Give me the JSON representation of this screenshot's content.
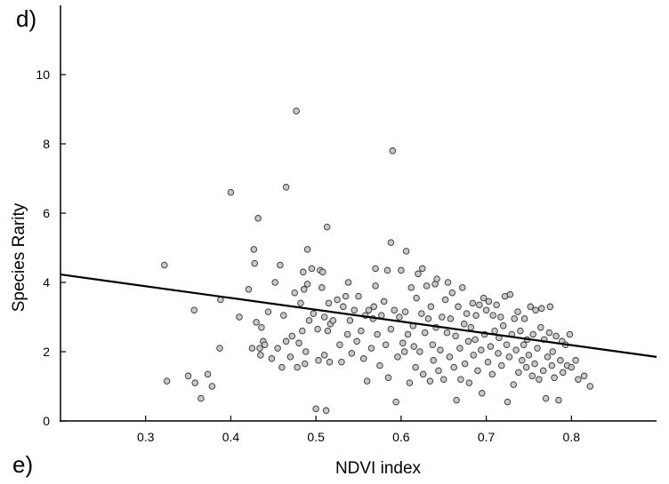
{
  "panel_labels": {
    "top": "d)",
    "bottom": "e)"
  },
  "chart_data": {
    "type": "scatter",
    "xlabel": "NDVI index",
    "ylabel": "Species Rarity",
    "xlim": [
      0.2,
      0.9
    ],
    "ylim": [
      0,
      12
    ],
    "xticks": [
      "0.3",
      "0.4",
      "0.5",
      "0.6",
      "0.7",
      "0.8"
    ],
    "yticks": [
      "0",
      "2",
      "4",
      "6",
      "8",
      "10"
    ],
    "grid": false,
    "trendline": {
      "x": [
        0.2,
        0.9
      ],
      "y": [
        4.23,
        1.85
      ]
    },
    "points": [
      [
        0.322,
        4.5
      ],
      [
        0.325,
        1.15
      ],
      [
        0.35,
        1.3
      ],
      [
        0.357,
        3.2
      ],
      [
        0.358,
        1.1
      ],
      [
        0.365,
        0.65
      ],
      [
        0.373,
        1.35
      ],
      [
        0.378,
        1.0
      ],
      [
        0.387,
        2.1
      ],
      [
        0.388,
        3.5
      ],
      [
        0.4,
        6.6
      ],
      [
        0.41,
        3.0
      ],
      [
        0.421,
        3.8
      ],
      [
        0.425,
        2.1
      ],
      [
        0.427,
        4.95
      ],
      [
        0.428,
        4.55
      ],
      [
        0.43,
        2.85
      ],
      [
        0.432,
        5.85
      ],
      [
        0.434,
        2.1
      ],
      [
        0.435,
        1.9
      ],
      [
        0.436,
        2.7
      ],
      [
        0.438,
        2.3
      ],
      [
        0.44,
        2.2
      ],
      [
        0.444,
        3.15
      ],
      [
        0.448,
        1.8
      ],
      [
        0.452,
        4.0
      ],
      [
        0.455,
        2.1
      ],
      [
        0.458,
        4.5
      ],
      [
        0.46,
        1.55
      ],
      [
        0.462,
        3.05
      ],
      [
        0.465,
        6.75
      ],
      [
        0.465,
        2.3
      ],
      [
        0.47,
        1.85
      ],
      [
        0.472,
        2.45
      ],
      [
        0.475,
        3.7
      ],
      [
        0.477,
        8.95
      ],
      [
        0.478,
        1.55
      ],
      [
        0.48,
        2.25
      ],
      [
        0.482,
        3.4
      ],
      [
        0.484,
        2.6
      ],
      [
        0.485,
        4.3
      ],
      [
        0.486,
        3.8
      ],
      [
        0.487,
        1.65
      ],
      [
        0.488,
        2.0
      ],
      [
        0.49,
        3.95
      ],
      [
        0.49,
        4.95
      ],
      [
        0.492,
        2.9
      ],
      [
        0.495,
        4.4
      ],
      [
        0.497,
        3.1
      ],
      [
        0.5,
        0.35
      ],
      [
        0.502,
        2.65
      ],
      [
        0.503,
        1.75
      ],
      [
        0.505,
        4.35
      ],
      [
        0.507,
        3.85
      ],
      [
        0.508,
        4.3
      ],
      [
        0.51,
        1.9
      ],
      [
        0.51,
        3.0
      ],
      [
        0.512,
        0.3
      ],
      [
        0.513,
        5.6
      ],
      [
        0.514,
        2.6
      ],
      [
        0.515,
        3.4
      ],
      [
        0.516,
        1.7
      ],
      [
        0.517,
        2.8
      ],
      [
        0.52,
        2.9
      ],
      [
        0.525,
        3.5
      ],
      [
        0.528,
        2.2
      ],
      [
        0.53,
        1.7
      ],
      [
        0.532,
        3.3
      ],
      [
        0.535,
        3.6
      ],
      [
        0.537,
        2.5
      ],
      [
        0.538,
        4.0
      ],
      [
        0.54,
        2.9
      ],
      [
        0.542,
        1.95
      ],
      [
        0.545,
        3.2
      ],
      [
        0.548,
        2.3
      ],
      [
        0.55,
        3.6
      ],
      [
        0.553,
        2.6
      ],
      [
        0.556,
        1.8
      ],
      [
        0.558,
        3.05
      ],
      [
        0.56,
        1.15
      ],
      [
        0.562,
        3.2
      ],
      [
        0.565,
        2.1
      ],
      [
        0.567,
        2.95
      ],
      [
        0.568,
        3.3
      ],
      [
        0.57,
        3.9
      ],
      [
        0.57,
        4.4
      ],
      [
        0.572,
        2.5
      ],
      [
        0.575,
        1.6
      ],
      [
        0.577,
        3.05
      ],
      [
        0.58,
        3.45
      ],
      [
        0.582,
        2.2
      ],
      [
        0.584,
        4.35
      ],
      [
        0.585,
        1.25
      ],
      [
        0.588,
        2.65
      ],
      [
        0.588,
        5.15
      ],
      [
        0.59,
        7.8
      ],
      [
        0.592,
        3.2
      ],
      [
        0.594,
        0.55
      ],
      [
        0.596,
        1.85
      ],
      [
        0.598,
        3.0
      ],
      [
        0.6,
        4.35
      ],
      [
        0.602,
        2.25
      ],
      [
        0.604,
        2.0
      ],
      [
        0.605,
        3.15
      ],
      [
        0.606,
        4.9
      ],
      [
        0.608,
        2.5
      ],
      [
        0.61,
        1.1
      ],
      [
        0.612,
        3.85
      ],
      [
        0.614,
        2.75
      ],
      [
        0.615,
        2.15
      ],
      [
        0.617,
        1.55
      ],
      [
        0.618,
        3.55
      ],
      [
        0.62,
        4.25
      ],
      [
        0.622,
        2.0
      ],
      [
        0.624,
        3.1
      ],
      [
        0.625,
        4.4
      ],
      [
        0.626,
        1.35
      ],
      [
        0.628,
        2.55
      ],
      [
        0.63,
        3.9
      ],
      [
        0.632,
        2.95
      ],
      [
        0.634,
        1.15
      ],
      [
        0.635,
        3.3
      ],
      [
        0.637,
        2.2
      ],
      [
        0.638,
        1.75
      ],
      [
        0.64,
        3.95
      ],
      [
        0.641,
        2.7
      ],
      [
        0.642,
        4.1
      ],
      [
        0.644,
        1.45
      ],
      [
        0.646,
        2.05
      ],
      [
        0.648,
        3.0
      ],
      [
        0.65,
        1.2
      ],
      [
        0.652,
        3.5
      ],
      [
        0.654,
        2.55
      ],
      [
        0.655,
        4.0
      ],
      [
        0.657,
        1.85
      ],
      [
        0.658,
        2.95
      ],
      [
        0.66,
        3.7
      ],
      [
        0.662,
        1.55
      ],
      [
        0.664,
        2.45
      ],
      [
        0.665,
        0.6
      ],
      [
        0.667,
        3.3
      ],
      [
        0.669,
        2.1
      ],
      [
        0.67,
        1.2
      ],
      [
        0.672,
        3.85
      ],
      [
        0.674,
        2.8
      ],
      [
        0.675,
        1.65
      ],
      [
        0.677,
        3.1
      ],
      [
        0.679,
        2.3
      ],
      [
        0.68,
        1.1
      ],
      [
        0.682,
        2.7
      ],
      [
        0.684,
        3.4
      ],
      [
        0.685,
        1.9
      ],
      [
        0.687,
        2.35
      ],
      [
        0.688,
        3.05
      ],
      [
        0.69,
        1.45
      ],
      [
        0.692,
        3.35
      ],
      [
        0.694,
        2.05
      ],
      [
        0.695,
        0.8
      ],
      [
        0.697,
        3.55
      ],
      [
        0.698,
        2.5
      ],
      [
        0.7,
        3.2
      ],
      [
        0.702,
        1.7
      ],
      [
        0.703,
        3.45
      ],
      [
        0.705,
        2.15
      ],
      [
        0.707,
        1.35
      ],
      [
        0.708,
        3.05
      ],
      [
        0.71,
        2.6
      ],
      [
        0.712,
        3.35
      ],
      [
        0.714,
        1.95
      ],
      [
        0.715,
        2.4
      ],
      [
        0.717,
        3.0
      ],
      [
        0.718,
        1.6
      ],
      [
        0.72,
        2.75
      ],
      [
        0.722,
        3.6
      ],
      [
        0.724,
        2.2
      ],
      [
        0.725,
        0.55
      ],
      [
        0.727,
        1.85
      ],
      [
        0.728,
        3.65
      ],
      [
        0.73,
        2.5
      ],
      [
        0.732,
        1.05
      ],
      [
        0.733,
        2.95
      ],
      [
        0.735,
        2.05
      ],
      [
        0.737,
        3.15
      ],
      [
        0.738,
        1.4
      ],
      [
        0.74,
        2.6
      ],
      [
        0.742,
        1.75
      ],
      [
        0.744,
        2.2
      ],
      [
        0.745,
        2.95
      ],
      [
        0.747,
        1.55
      ],
      [
        0.748,
        2.35
      ],
      [
        0.75,
        1.9
      ],
      [
        0.752,
        3.3
      ],
      [
        0.754,
        1.3
      ],
      [
        0.755,
        2.5
      ],
      [
        0.757,
        1.65
      ],
      [
        0.758,
        3.2
      ],
      [
        0.76,
        2.1
      ],
      [
        0.762,
        1.2
      ],
      [
        0.764,
        2.7
      ],
      [
        0.765,
        3.25
      ],
      [
        0.767,
        1.45
      ],
      [
        0.768,
        2.35
      ],
      [
        0.77,
        0.65
      ],
      [
        0.772,
        1.85
      ],
      [
        0.774,
        2.55
      ],
      [
        0.775,
        3.3
      ],
      [
        0.777,
        1.6
      ],
      [
        0.778,
        2.0
      ],
      [
        0.78,
        1.25
      ],
      [
        0.782,
        2.45
      ],
      [
        0.785,
        0.6
      ],
      [
        0.787,
        1.75
      ],
      [
        0.789,
        2.3
      ],
      [
        0.79,
        1.4
      ],
      [
        0.793,
        2.2
      ],
      [
        0.795,
        1.6
      ],
      [
        0.798,
        2.5
      ],
      [
        0.8,
        1.55
      ],
      [
        0.805,
        1.75
      ],
      [
        0.808,
        1.2
      ],
      [
        0.815,
        1.3
      ],
      [
        0.822,
        1.0
      ]
    ]
  }
}
